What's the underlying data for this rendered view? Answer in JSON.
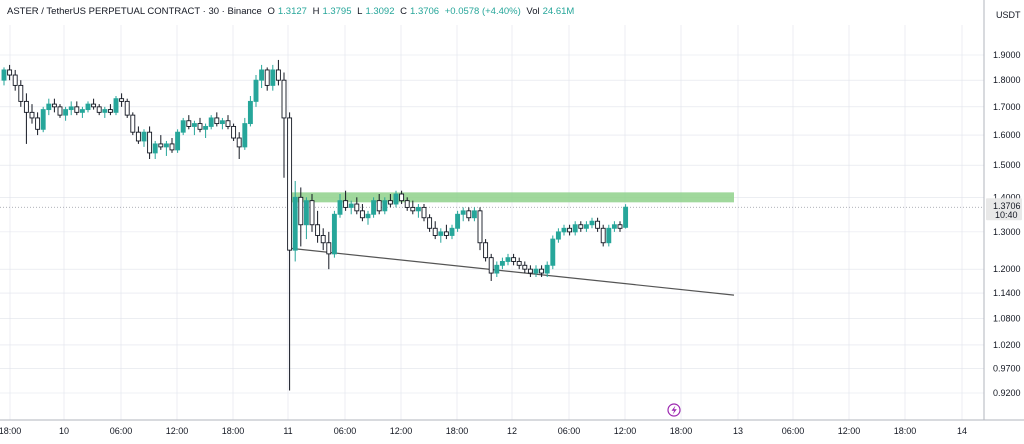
{
  "header": {
    "symbol": "ASTER / TetherUS PERPETUAL CONTRACT · 30 · Binance",
    "open_label": "O",
    "open": "1.3127",
    "high_label": "H",
    "high": "1.3795",
    "low_label": "L",
    "low": "1.3092",
    "close_label": "C",
    "close": "1.3706",
    "change": "+0.0578 (+4.40%)",
    "vol_label": "Vol",
    "vol": "24.61M"
  },
  "price_axis": {
    "unit": "USDT",
    "ticks": [
      "1.9000",
      "1.8000",
      "1.7000",
      "1.6000",
      "1.5000",
      "1.4000",
      "1.3000",
      "1.2000",
      "1.1400",
      "1.0800",
      "1.0200",
      "0.9700",
      "0.9200"
    ],
    "current_price": "1.3706",
    "countdown": "10:40"
  },
  "time_axis": {
    "ticks": [
      "18:00",
      "10",
      "06:00",
      "12:00",
      "18:00",
      "11",
      "06:00",
      "12:00",
      "18:00",
      "12",
      "06:00",
      "12:00",
      "18:00",
      "13",
      "06:00",
      "12:00",
      "18:00",
      "14"
    ]
  },
  "colors": {
    "up": "#26a69a",
    "down": "#131722",
    "resistance_zone": "#8fd18b",
    "support_line": "#555555",
    "grid": "#e0e3eb"
  },
  "chart_data": {
    "type": "candlestick",
    "symbol": "ASTERUSDT.P",
    "timeframe": "30",
    "y_scale": "log",
    "ylim": [
      0.895,
      1.97
    ],
    "x_ticks": [
      "18:00",
      "10",
      "06:00",
      "12:00",
      "18:00",
      "11",
      "06:00",
      "12:00",
      "18:00",
      "12",
      "06:00",
      "12:00",
      "18:00",
      "13",
      "06:00",
      "12:00",
      "18:00",
      "14"
    ],
    "candles": [
      [
        1.8,
        1.85,
        1.78,
        1.84
      ],
      [
        1.84,
        1.86,
        1.8,
        1.82
      ],
      [
        1.82,
        1.84,
        1.76,
        1.78
      ],
      [
        1.78,
        1.8,
        1.7,
        1.72
      ],
      [
        1.72,
        1.75,
        1.57,
        1.68
      ],
      [
        1.68,
        1.71,
        1.64,
        1.66
      ],
      [
        1.66,
        1.68,
        1.6,
        1.62
      ],
      [
        1.62,
        1.7,
        1.61,
        1.69
      ],
      [
        1.69,
        1.73,
        1.67,
        1.71
      ],
      [
        1.71,
        1.73,
        1.68,
        1.7
      ],
      [
        1.7,
        1.71,
        1.66,
        1.67
      ],
      [
        1.67,
        1.7,
        1.65,
        1.69
      ],
      [
        1.69,
        1.72,
        1.67,
        1.7
      ],
      [
        1.7,
        1.72,
        1.67,
        1.68
      ],
      [
        1.68,
        1.7,
        1.66,
        1.69
      ],
      [
        1.69,
        1.72,
        1.68,
        1.71
      ],
      [
        1.71,
        1.73,
        1.69,
        1.7
      ],
      [
        1.7,
        1.71,
        1.67,
        1.68
      ],
      [
        1.68,
        1.7,
        1.66,
        1.69
      ],
      [
        1.69,
        1.71,
        1.67,
        1.68
      ],
      [
        1.68,
        1.74,
        1.67,
        1.73
      ],
      [
        1.73,
        1.75,
        1.7,
        1.72
      ],
      [
        1.72,
        1.73,
        1.66,
        1.67
      ],
      [
        1.67,
        1.68,
        1.6,
        1.61
      ],
      [
        1.61,
        1.63,
        1.57,
        1.58
      ],
      [
        1.58,
        1.62,
        1.56,
        1.61
      ],
      [
        1.61,
        1.63,
        1.52,
        1.54
      ],
      [
        1.54,
        1.58,
        1.52,
        1.57
      ],
      [
        1.57,
        1.6,
        1.55,
        1.56
      ],
      [
        1.56,
        1.58,
        1.53,
        1.57
      ],
      [
        1.57,
        1.59,
        1.54,
        1.55
      ],
      [
        1.55,
        1.62,
        1.54,
        1.61
      ],
      [
        1.61,
        1.66,
        1.6,
        1.65
      ],
      [
        1.65,
        1.67,
        1.62,
        1.63
      ],
      [
        1.63,
        1.65,
        1.6,
        1.64
      ],
      [
        1.64,
        1.66,
        1.61,
        1.62
      ],
      [
        1.62,
        1.64,
        1.59,
        1.63
      ],
      [
        1.63,
        1.67,
        1.62,
        1.66
      ],
      [
        1.66,
        1.68,
        1.63,
        1.64
      ],
      [
        1.64,
        1.66,
        1.62,
        1.65
      ],
      [
        1.65,
        1.67,
        1.62,
        1.63
      ],
      [
        1.63,
        1.64,
        1.58,
        1.59
      ],
      [
        1.59,
        1.61,
        1.52,
        1.56
      ],
      [
        1.56,
        1.66,
        1.55,
        1.64
      ],
      [
        1.64,
        1.74,
        1.63,
        1.72
      ],
      [
        1.72,
        1.82,
        1.7,
        1.8
      ],
      [
        1.8,
        1.86,
        1.77,
        1.84
      ],
      [
        1.84,
        1.85,
        1.76,
        1.78
      ],
      [
        1.78,
        1.86,
        1.76,
        1.84
      ],
      [
        1.84,
        1.88,
        1.78,
        1.8
      ],
      [
        1.8,
        1.83,
        1.46,
        1.66
      ],
      [
        1.66,
        1.68,
        0.925,
        1.25
      ],
      [
        1.25,
        1.45,
        1.22,
        1.4
      ],
      [
        1.4,
        1.43,
        1.26,
        1.32
      ],
      [
        1.32,
        1.4,
        1.28,
        1.39
      ],
      [
        1.39,
        1.41,
        1.3,
        1.32
      ],
      [
        1.32,
        1.36,
        1.27,
        1.29
      ],
      [
        1.29,
        1.31,
        1.25,
        1.27
      ],
      [
        1.27,
        1.3,
        1.2,
        1.24
      ],
      [
        1.24,
        1.36,
        1.23,
        1.35
      ],
      [
        1.35,
        1.41,
        1.34,
        1.39
      ],
      [
        1.39,
        1.42,
        1.36,
        1.37
      ],
      [
        1.37,
        1.39,
        1.35,
        1.38
      ],
      [
        1.38,
        1.4,
        1.35,
        1.36
      ],
      [
        1.36,
        1.38,
        1.33,
        1.34
      ],
      [
        1.34,
        1.36,
        1.32,
        1.35
      ],
      [
        1.35,
        1.4,
        1.34,
        1.39
      ],
      [
        1.39,
        1.41,
        1.35,
        1.36
      ],
      [
        1.36,
        1.4,
        1.35,
        1.39
      ],
      [
        1.39,
        1.41,
        1.37,
        1.38
      ],
      [
        1.38,
        1.42,
        1.37,
        1.41
      ],
      [
        1.41,
        1.42,
        1.38,
        1.39
      ],
      [
        1.39,
        1.4,
        1.36,
        1.37
      ],
      [
        1.37,
        1.39,
        1.35,
        1.36
      ],
      [
        1.36,
        1.38,
        1.34,
        1.37
      ],
      [
        1.37,
        1.38,
        1.33,
        1.34
      ],
      [
        1.34,
        1.35,
        1.3,
        1.31
      ],
      [
        1.31,
        1.33,
        1.28,
        1.29
      ],
      [
        1.29,
        1.31,
        1.27,
        1.3
      ],
      [
        1.3,
        1.32,
        1.28,
        1.29
      ],
      [
        1.29,
        1.32,
        1.28,
        1.31
      ],
      [
        1.31,
        1.36,
        1.3,
        1.35
      ],
      [
        1.35,
        1.37,
        1.33,
        1.36
      ],
      [
        1.36,
        1.37,
        1.33,
        1.34
      ],
      [
        1.34,
        1.37,
        1.33,
        1.36
      ],
      [
        1.36,
        1.37,
        1.25,
        1.27
      ],
      [
        1.27,
        1.28,
        1.22,
        1.23
      ],
      [
        1.23,
        1.24,
        1.17,
        1.19
      ],
      [
        1.19,
        1.22,
        1.18,
        1.21
      ],
      [
        1.21,
        1.23,
        1.2,
        1.22
      ],
      [
        1.22,
        1.24,
        1.21,
        1.23
      ],
      [
        1.23,
        1.24,
        1.21,
        1.22
      ],
      [
        1.22,
        1.23,
        1.2,
        1.21
      ],
      [
        1.21,
        1.22,
        1.19,
        1.2
      ],
      [
        1.2,
        1.21,
        1.18,
        1.19
      ],
      [
        1.19,
        1.21,
        1.18,
        1.2
      ],
      [
        1.2,
        1.21,
        1.18,
        1.19
      ],
      [
        1.19,
        1.22,
        1.18,
        1.21
      ],
      [
        1.21,
        1.29,
        1.2,
        1.28
      ],
      [
        1.28,
        1.31,
        1.27,
        1.3
      ],
      [
        1.3,
        1.32,
        1.29,
        1.31
      ],
      [
        1.31,
        1.32,
        1.29,
        1.3
      ],
      [
        1.3,
        1.33,
        1.29,
        1.32
      ],
      [
        1.32,
        1.33,
        1.3,
        1.31
      ],
      [
        1.31,
        1.33,
        1.3,
        1.32
      ],
      [
        1.32,
        1.34,
        1.31,
        1.33
      ],
      [
        1.33,
        1.34,
        1.3,
        1.31
      ],
      [
        1.31,
        1.32,
        1.26,
        1.27
      ],
      [
        1.27,
        1.32,
        1.26,
        1.31
      ],
      [
        1.31,
        1.33,
        1.3,
        1.32
      ],
      [
        1.32,
        1.33,
        1.3,
        1.31
      ],
      [
        1.3127,
        1.3795,
        1.3092,
        1.3706
      ]
    ],
    "resistance_zone": {
      "low": 1.385,
      "high": 1.415,
      "from": "11 ~03:00",
      "to": "13 00:00"
    },
    "support_line": {
      "from": {
        "time": "11 00:00",
        "price": 1.255
      },
      "to": {
        "time": "13 00:00",
        "price": 1.135
      }
    },
    "last_price": 1.3706
  }
}
